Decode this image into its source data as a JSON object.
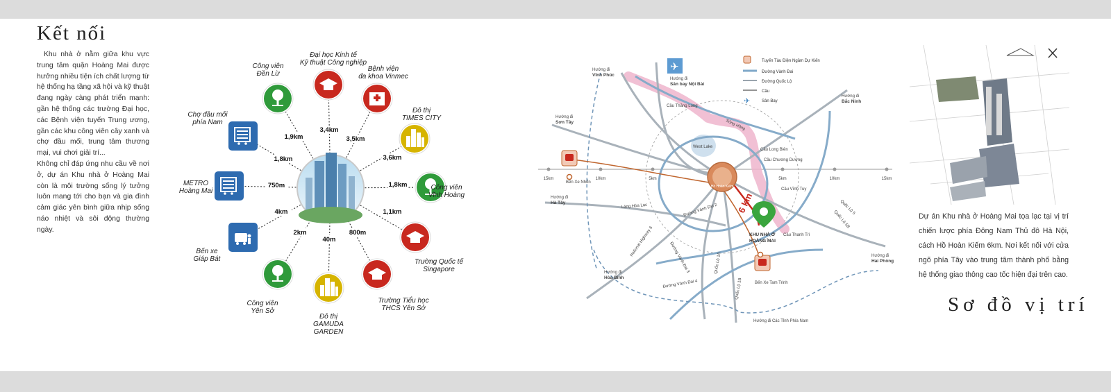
{
  "left": {
    "title": "Kết nối",
    "paragraphs": [
      "Khu nhà ở nằm giữa khu vực trung tâm quận Hoàng Mai được hưởng nhiều tiện ích chất lượng từ hệ thống hạ tầng xã hội và kỹ thuật đang ngày càng phát triển mạnh: gần hệ thống các trường Đại học, các Bệnh viện tuyến Trung ương, gần các khu công viên cây xanh và chợ đầu mối, trung tâm thương mại, vui chơi giải trí...",
      "Không chỉ đáp ứng nhu cầu về nơi ở, dự án Khu nhà ở Hoàng Mai còn là môi trường sống lý tưởng luôn mang tới cho bạn và gia đình cảm giác yên bình giữa nhịp sống náo nhiệt và sôi động thường ngày."
    ]
  },
  "connections": [
    {
      "label": [
        "Công viên",
        "Đền Lừ"
      ],
      "distance": "1,9km",
      "color": "#2f9a3a",
      "icon": "tree-icon"
    },
    {
      "label": [
        "Đại học Kinh tế",
        "Kỹ thuật Công nghiệp"
      ],
      "distance": "3,4km",
      "color": "#c8281e",
      "icon": "graduation-cap-icon"
    },
    {
      "label": [
        "Bệnh viện",
        "đa khoa Vinmec"
      ],
      "distance": "3,5km",
      "color": "#c8281e",
      "icon": "hospital-icon"
    },
    {
      "label": [
        "Đô thị",
        "TIMES CITY"
      ],
      "distance": "3,6km",
      "color": "#d6b400",
      "icon": "city-buildings-icon"
    },
    {
      "label": [
        "Công viên",
        "Vĩnh Hoàng"
      ],
      "distance": "1,8km",
      "color": "#2f9a3a",
      "icon": "tree-icon"
    },
    {
      "label": [
        "Trường Quốc tế",
        "Singapore"
      ],
      "distance": "1,1km",
      "color": "#c8281e",
      "icon": "graduation-cap-icon"
    },
    {
      "label": [
        "Trường Tiểu học",
        "THCS Yên Sở"
      ],
      "distance": "800m",
      "color": "#c8281e",
      "icon": "graduation-cap-icon"
    },
    {
      "label": [
        "Đô thị",
        "GAMUDA",
        "GARDEN"
      ],
      "distance": "40m",
      "color": "#d6b400",
      "icon": "city-buildings-icon"
    },
    {
      "label": [
        "Công viên",
        "Yên Sở"
      ],
      "distance": "2km",
      "color": "#2f9a3a",
      "icon": "tree-icon"
    },
    {
      "label": [
        "Bến xe",
        "Giáp Bát"
      ],
      "distance": "4km",
      "color": "#2e6bb0",
      "icon": "bus-station-icon"
    },
    {
      "label": [
        "METRO",
        "Hoàng Mai"
      ],
      "distance": "750m",
      "color": "#2e6bb0",
      "icon": "shopping-mall-icon"
    },
    {
      "label": [
        "Chợ đầu mối",
        "phía Nam"
      ],
      "distance": "1,8km",
      "color": "#2e6bb0",
      "icon": "market-icon"
    }
  ],
  "map": {
    "legend": [
      {
        "text": "Tuyến Tàu Điện Ngầm Dự Kiến",
        "icon": "metro-train-icon"
      },
      {
        "text": "Đường Vành Đai",
        "color": "#7fa8c9"
      },
      {
        "text": "Đường Quốc Lộ",
        "color": "#9aa4ad"
      },
      {
        "text": "Cầu",
        "color": "#555555"
      },
      {
        "text": "Sân Bay",
        "icon": "airplane-icon"
      }
    ],
    "scale_labels": [
      "15km",
      "10km",
      "5km",
      "5km",
      "10km",
      "15km"
    ],
    "directions": [
      {
        "text": [
          "Hướng đi",
          "Vĩnh Phúc"
        ]
      },
      {
        "text": [
          "Hướng đi",
          "Sân bay Nội Bài"
        ]
      },
      {
        "text": [
          "Hướng đi",
          "Bắc Ninh"
        ]
      },
      {
        "text": [
          "Hướng đi",
          "Sơn Tây"
        ]
      },
      {
        "text": [
          "Hướng đi",
          "Hà Tây"
        ]
      },
      {
        "text": [
          "Hướng đi",
          "Hòa Bình"
        ]
      },
      {
        "text": [
          "Hướng đi",
          "Hải Phòng"
        ]
      },
      {
        "text": [
          "Hướng đi Các Tỉnh Phía Nam"
        ]
      }
    ],
    "roads": [
      "Cầu Thăng Long",
      "Sông Hồng",
      "West Lake",
      "Cầu Long Biên",
      "Cầu Chương Dương",
      "Cầu Vĩnh Tuy",
      "Cầu Thanh Trì",
      "Láng Hòa Lạc",
      "Đường Vành Đai 2",
      "Đường Vành Đai 3",
      "Đường Vành Đai 4",
      "National Highway 6",
      "Quốc Lộ 1A",
      "Quốc Lộ 1B",
      "Quốc Lộ 5",
      "Quốc Lộ 5B"
    ],
    "stations": [
      "Bến Xe Nhổn",
      "Bến Xe Tam Trinh"
    ],
    "center_label": "Hồ Hoàn Kiếm",
    "distance_label": "6 km",
    "project_label": [
      "KHU NHÀ Ở",
      "HOÀNG MAI"
    ],
    "colors": {
      "ring": "#7fa8c9",
      "highway": "#9aa4ad",
      "river": "#e9a7c4",
      "metro": "#c0662f",
      "route": "#c8281e",
      "pin": "#3aa53e"
    }
  },
  "right": {
    "text": "Dự án Khu nhà ở Hoàng Mai tọa lạc tại vị trí chiến lược phía Đông Nam Thủ đô Hà Nội, cách Hồ Hoàn Kiếm 6km. Nơi kết nối với cửa ngõ phía Tây vào trung tâm thành phố bằng hệ thống giao thông cao tốc hiện đại trên cao.",
    "title": "Sơ đồ vị trí"
  }
}
